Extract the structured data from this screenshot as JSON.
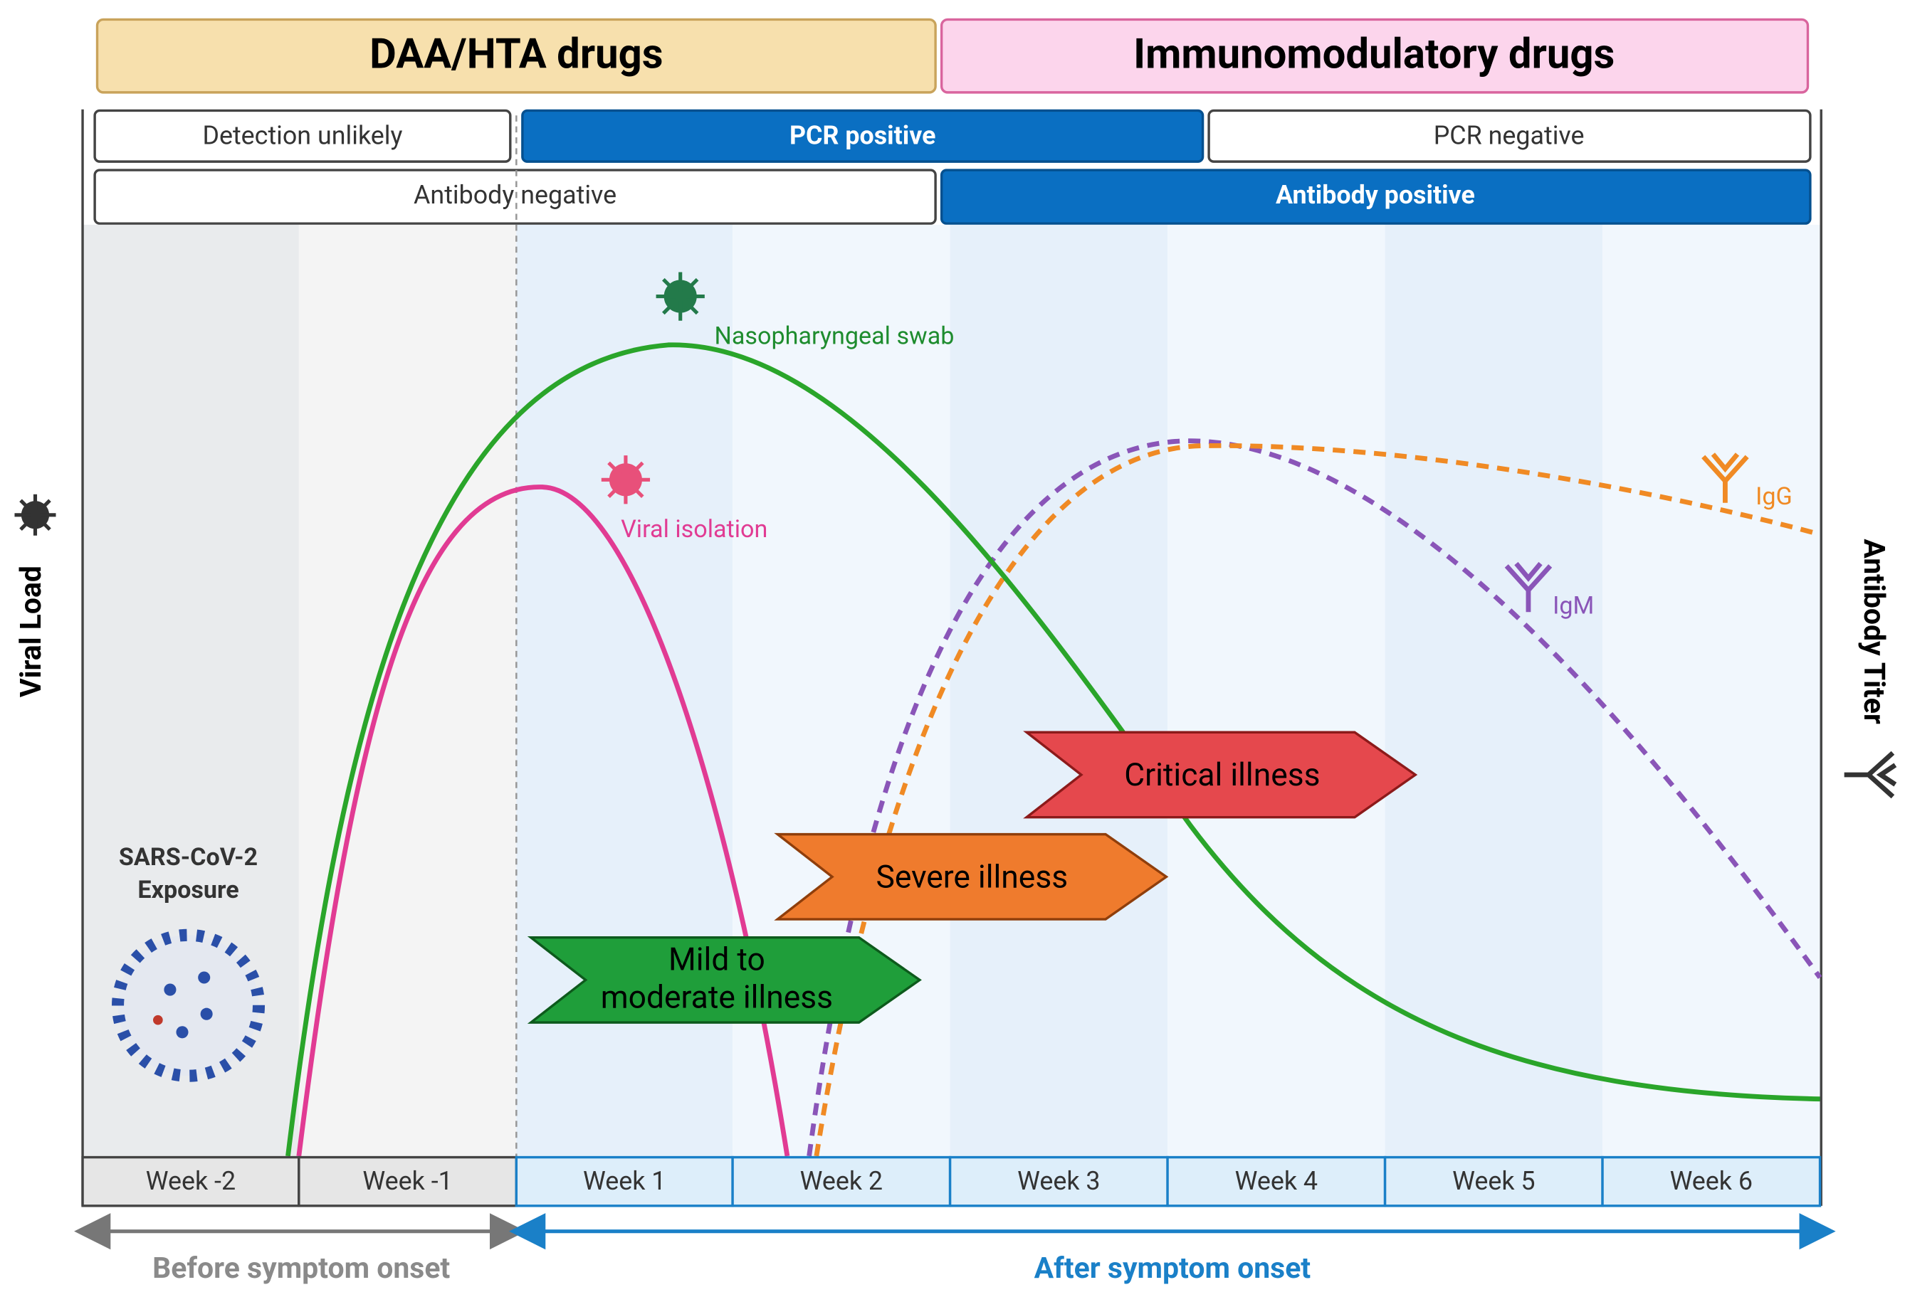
{
  "drugs": [
    "DAA/HTA drugs",
    "Immunomodulatory drugs"
  ],
  "pcr": [
    "Detection unlikely",
    "PCR positive",
    "PCR negative"
  ],
  "antibody": [
    "Antibody negative",
    "Antibody positive"
  ],
  "weeks": [
    "Week -2",
    "Week -1",
    "Week 1",
    "Week 2",
    "Week 3",
    "Week 4",
    "Week 5",
    "Week 6"
  ],
  "curves": {
    "swab": "Nasopharyngeal swab",
    "isolation": "Viral isolation",
    "igg": "IgG",
    "igm": "IgM"
  },
  "illness": {
    "critical": "Critical illness",
    "severe": "Severe illness",
    "mild": [
      "Mild to",
      "moderate illness"
    ]
  },
  "axes": {
    "left": "Viral Load",
    "right": "Antibody Titer"
  },
  "exposure": [
    "SARS-CoV-2",
    "Exposure"
  ],
  "periods": [
    "Before symptom onset",
    "After symptom onset"
  ]
}
